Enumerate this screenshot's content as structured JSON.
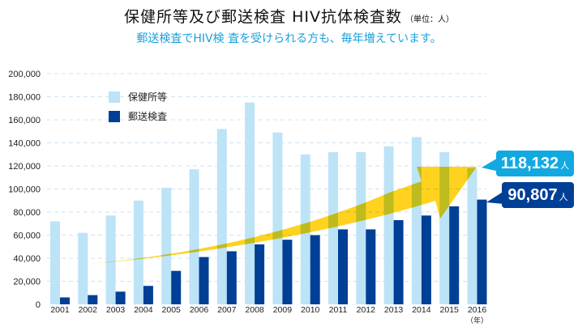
{
  "header": {
    "title": "保健所等及び郵送検査 HIV抗体検査数",
    "unit": "（単位：人）",
    "subtitle": "郵送検査でHIV検 査を受けられる方も、毎年増えています。"
  },
  "callouts": {
    "clinic_value": "118,132",
    "mail_value": "90,807",
    "unit": "人"
  },
  "colors": {
    "clinic": "#bde3f7",
    "mail": "#003f96",
    "arrow": "#ffcc00",
    "callout_light": "#12a9e1",
    "callout_dark": "#003f96",
    "grid": "#cfe3f2"
  },
  "chart_data": {
    "type": "bar",
    "title": "保健所等及び郵送検査 HIV抗体検査数",
    "subtitle": "郵送検査でHIV検 査を受けられる方も、毎年増えています。",
    "xlabel": "（年）",
    "ylabel": "",
    "unit": "人",
    "ylim": [
      0,
      200000
    ],
    "yticks": [
      0,
      20000,
      40000,
      60000,
      80000,
      100000,
      120000,
      140000,
      160000,
      180000,
      200000
    ],
    "ytick_labels": [
      "0",
      "20,000",
      "40,000",
      "60,000",
      "80,000",
      "100,000",
      "120,000",
      "140,000",
      "160,000",
      "180,000",
      "200,000"
    ],
    "grid": true,
    "legend_position": "top-left",
    "categories": [
      "2001",
      "2002",
      "2003",
      "2004",
      "2005",
      "2006",
      "2007",
      "2008",
      "2009",
      "2010",
      "2011",
      "2012",
      "2013",
      "2014",
      "2015",
      "2016"
    ],
    "series": [
      {
        "name": "保健所等",
        "values": [
          72000,
          62000,
          77000,
          90000,
          101000,
          117000,
          152000,
          175000,
          149000,
          130000,
          132000,
          132000,
          137000,
          145000,
          132000,
          118132
        ]
      },
      {
        "name": "郵送検査",
        "values": [
          6000,
          8000,
          11000,
          16000,
          29000,
          41000,
          46000,
          52000,
          56000,
          60000,
          65000,
          65000,
          73000,
          77000,
          85000,
          90807
        ]
      }
    ],
    "annotations": [
      "118,132人",
      "90,807人",
      "upward trend arrow"
    ]
  }
}
